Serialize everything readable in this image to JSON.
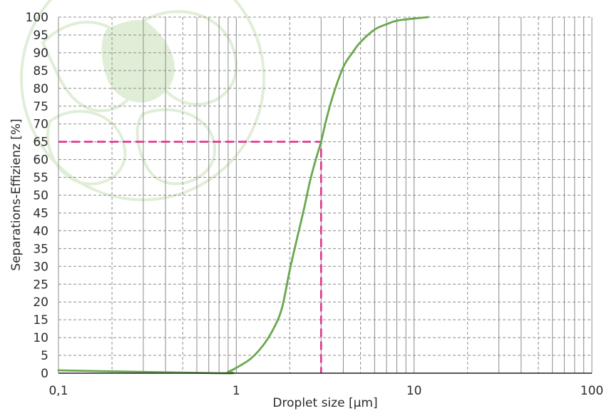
{
  "chart_data": {
    "type": "line",
    "xlabel": "Droplet size [µm]",
    "ylabel": "Separations-Effizienz [%]",
    "xscale": "log",
    "xlim": [
      0.1,
      100
    ],
    "ylim": [
      0,
      100
    ],
    "x_ticks": [
      {
        "value": 0.1,
        "label": "0,1"
      },
      {
        "value": 1,
        "label": "1"
      },
      {
        "value": 10,
        "label": "10"
      },
      {
        "value": 100,
        "label": "100"
      }
    ],
    "y_ticks": [
      "0",
      "5",
      "10",
      "15",
      "20",
      "25",
      "30",
      "35",
      "40",
      "45",
      "50",
      "55",
      "60",
      "65",
      "70",
      "75",
      "80",
      "85",
      "90",
      "95",
      "100"
    ],
    "grid": true,
    "series": [
      {
        "color": "#6aa84f",
        "x": [
          0.1,
          0.8,
          0.9,
          1.0,
          1.2,
          1.4,
          1.6,
          1.8,
          2.0,
          2.2,
          2.4,
          2.6,
          2.8,
          3.0,
          3.2,
          3.5,
          4.0,
          4.5,
          5.0,
          6.0,
          7.0,
          8.0,
          10.0,
          12.0
        ],
        "y": [
          0.8,
          0.0,
          0.4,
          1.5,
          4.0,
          7.5,
          12.0,
          18.0,
          29.0,
          38.0,
          46.0,
          54.0,
          60.0,
          65.0,
          71.0,
          78.0,
          86.0,
          90.0,
          93.0,
          96.5,
          98.0,
          99.0,
          99.6,
          100.0
        ]
      }
    ],
    "reference": {
      "x": 3.0,
      "y": 65,
      "color": "#e0338a"
    }
  }
}
